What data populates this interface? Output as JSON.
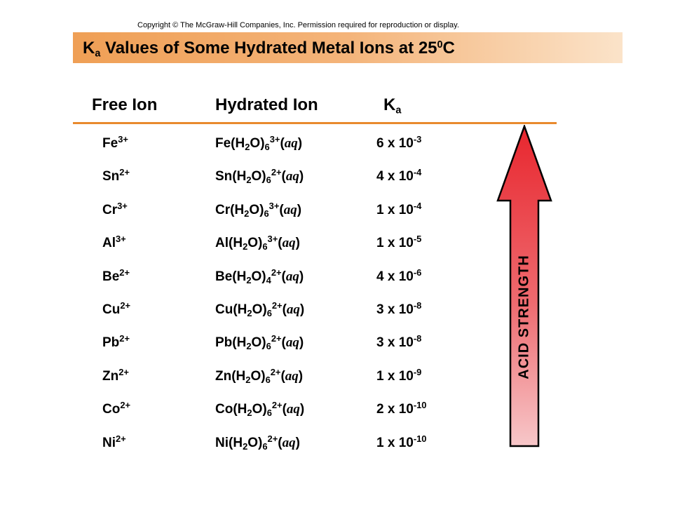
{
  "copyright": "Copyright © The McGraw-Hill Companies, Inc. Permission required for reproduction or display.",
  "title": {
    "pre": "K",
    "sub": "a",
    "mid": " Values of Some Hydrated Metal Ions at 25",
    "sup": "0",
    "post": "C"
  },
  "columns": {
    "free_ion": "Free Ion",
    "hydrated_ion": "Hydrated Ion",
    "ka_main": "K",
    "ka_sub": "a"
  },
  "arrow_label": "ACID STRENGTH",
  "colors": {
    "title_bar": "#ef9f55",
    "rule": "#e98a2e",
    "arrow_top": "#e8262e",
    "arrow_bottom": "#f7c7c9"
  },
  "rows": [
    {
      "ion": "Fe",
      "charge": "3+",
      "h_metal": "Fe(H",
      "water_n": "6",
      "h_charge": "3+",
      "aq": "aq",
      "coef": "6 x 10",
      "exp": "-3"
    },
    {
      "ion": "Sn",
      "charge": "2+",
      "h_metal": "Sn(H",
      "water_n": "6",
      "h_charge": "2+",
      "aq": "aq",
      "coef": "4 x 10",
      "exp": "-4"
    },
    {
      "ion": "Cr",
      "charge": "3+",
      "h_metal": "Cr(H",
      "water_n": "6",
      "h_charge": "3+",
      "aq": "aq",
      "coef": "1 x 10",
      "exp": "-4"
    },
    {
      "ion": "Al",
      "charge": "3+",
      "h_metal": "Al(H",
      "water_n": "6",
      "h_charge": "3+",
      "aq": "aq",
      "coef": "1 x 10",
      "exp": "-5"
    },
    {
      "ion": "Be",
      "charge": "2+",
      "h_metal": "Be(H",
      "water_n": "4",
      "h_charge": "2+",
      "aq": "aq",
      "coef": "4 x 10",
      "exp": "-6"
    },
    {
      "ion": "Cu",
      "charge": "2+",
      "h_metal": "Cu(H",
      "water_n": "6",
      "h_charge": "2+",
      "aq": "aq",
      "coef": "3 x 10",
      "exp": "-8"
    },
    {
      "ion": "Pb",
      "charge": "2+",
      "h_metal": "Pb(H",
      "water_n": "6",
      "h_charge": "2+",
      "aq": "aq",
      "coef": "3 x 10",
      "exp": "-8"
    },
    {
      "ion": "Zn",
      "charge": "2+",
      "h_metal": "Zn(H",
      "water_n": "6",
      "h_charge": "2+",
      "aq": "aq",
      "coef": "1 x 10",
      "exp": "-9"
    },
    {
      "ion": "Co",
      "charge": "2+",
      "h_metal": "Co(H",
      "water_n": "6",
      "h_charge": "2+",
      "aq": "aq",
      "coef": "2 x 10",
      "exp": "-10"
    },
    {
      "ion": "Ni",
      "charge": "2+",
      "h_metal": "Ni(H",
      "water_n": "6",
      "h_charge": "2+",
      "aq": "aq",
      "coef": "1 x 10",
      "exp": "-10"
    }
  ]
}
